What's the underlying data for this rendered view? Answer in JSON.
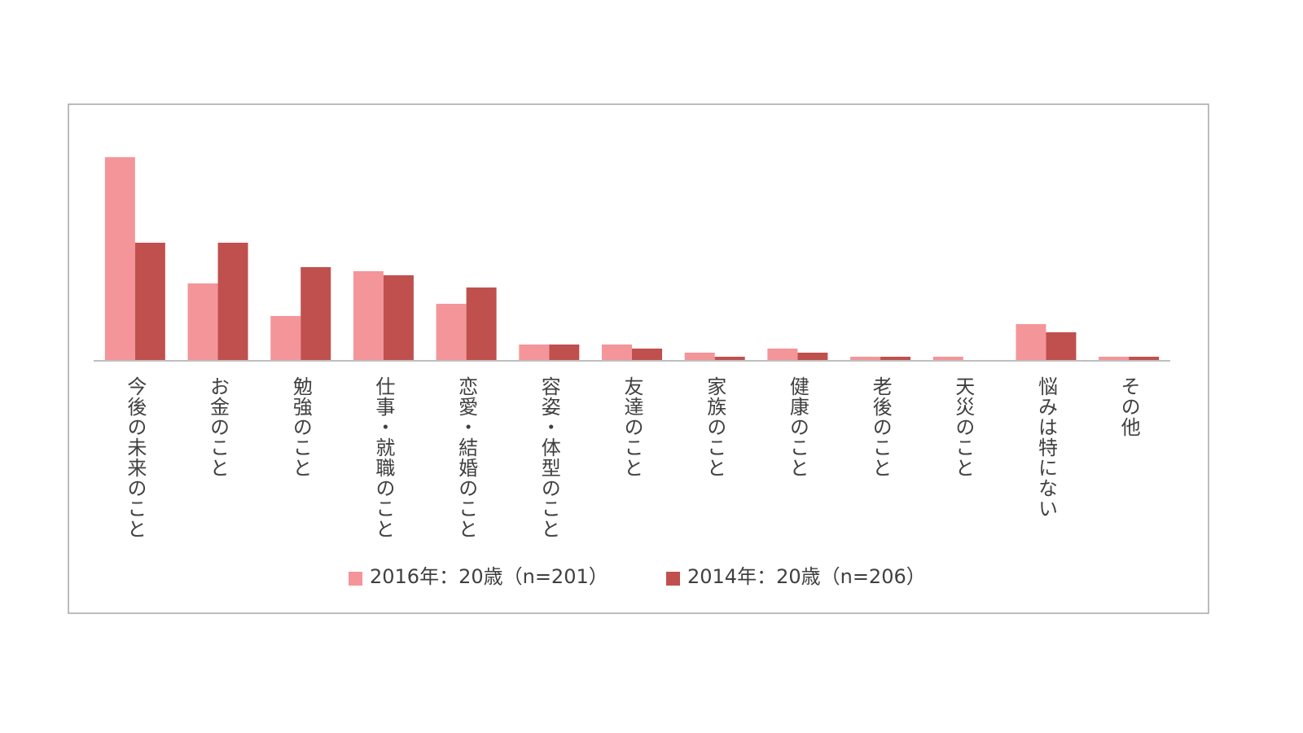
{
  "chart_data": {
    "type": "bar",
    "categories": [
      "今後の未来のこと",
      "お金のこと",
      "勉強のこと",
      "仕事・就職のこと",
      "恋愛・結婚のこと",
      "容姿・体型のこと",
      "友達のこと",
      "家族のこと",
      "健康のこと",
      "老後のこと",
      "天災のこと",
      "悩みは特にない",
      "その他"
    ],
    "series": [
      {
        "name": "2016年：20歳（n=201）",
        "color": "#f4959a",
        "values": [
          50,
          19,
          11,
          22,
          14,
          4,
          4,
          2,
          3,
          1,
          1,
          9,
          1
        ]
      },
      {
        "name": "2014年：20歳（n=206）",
        "color": "#c0504d",
        "values": [
          29,
          29,
          23,
          21,
          18,
          4,
          3,
          1,
          2,
          1,
          0,
          7,
          1
        ]
      }
    ],
    "ylim": [
      0,
      50
    ]
  }
}
